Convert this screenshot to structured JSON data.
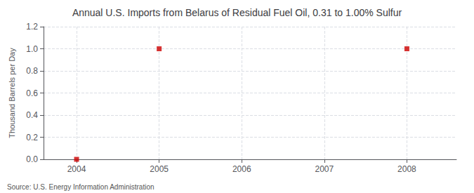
{
  "chart_data": {
    "type": "scatter",
    "title": "Annual U.S. Imports from Belarus of Residual Fuel Oil, 0.31 to 1.00% Sulfur",
    "y_label": "Thousand Barrels per Day",
    "source": "Source: U.S. Energy Information Administration",
    "x": [
      2004,
      2005,
      2008
    ],
    "values": [
      0.0,
      1.0,
      1.0
    ],
    "color": "#CC0000",
    "marker": "square",
    "xlim": [
      2003.6,
      2008.6
    ],
    "xticks": [
      2004,
      2005,
      2006,
      2007,
      2008
    ],
    "ylim": [
      0.0,
      1.2
    ],
    "yticks": [
      {
        "value": 0.0,
        "label": "0.0"
      },
      0.2,
      0.4,
      0.6,
      0.8,
      {
        "value": 1.0,
        "label": "1.0"
      },
      1.2
    ],
    "grid": true
  }
}
